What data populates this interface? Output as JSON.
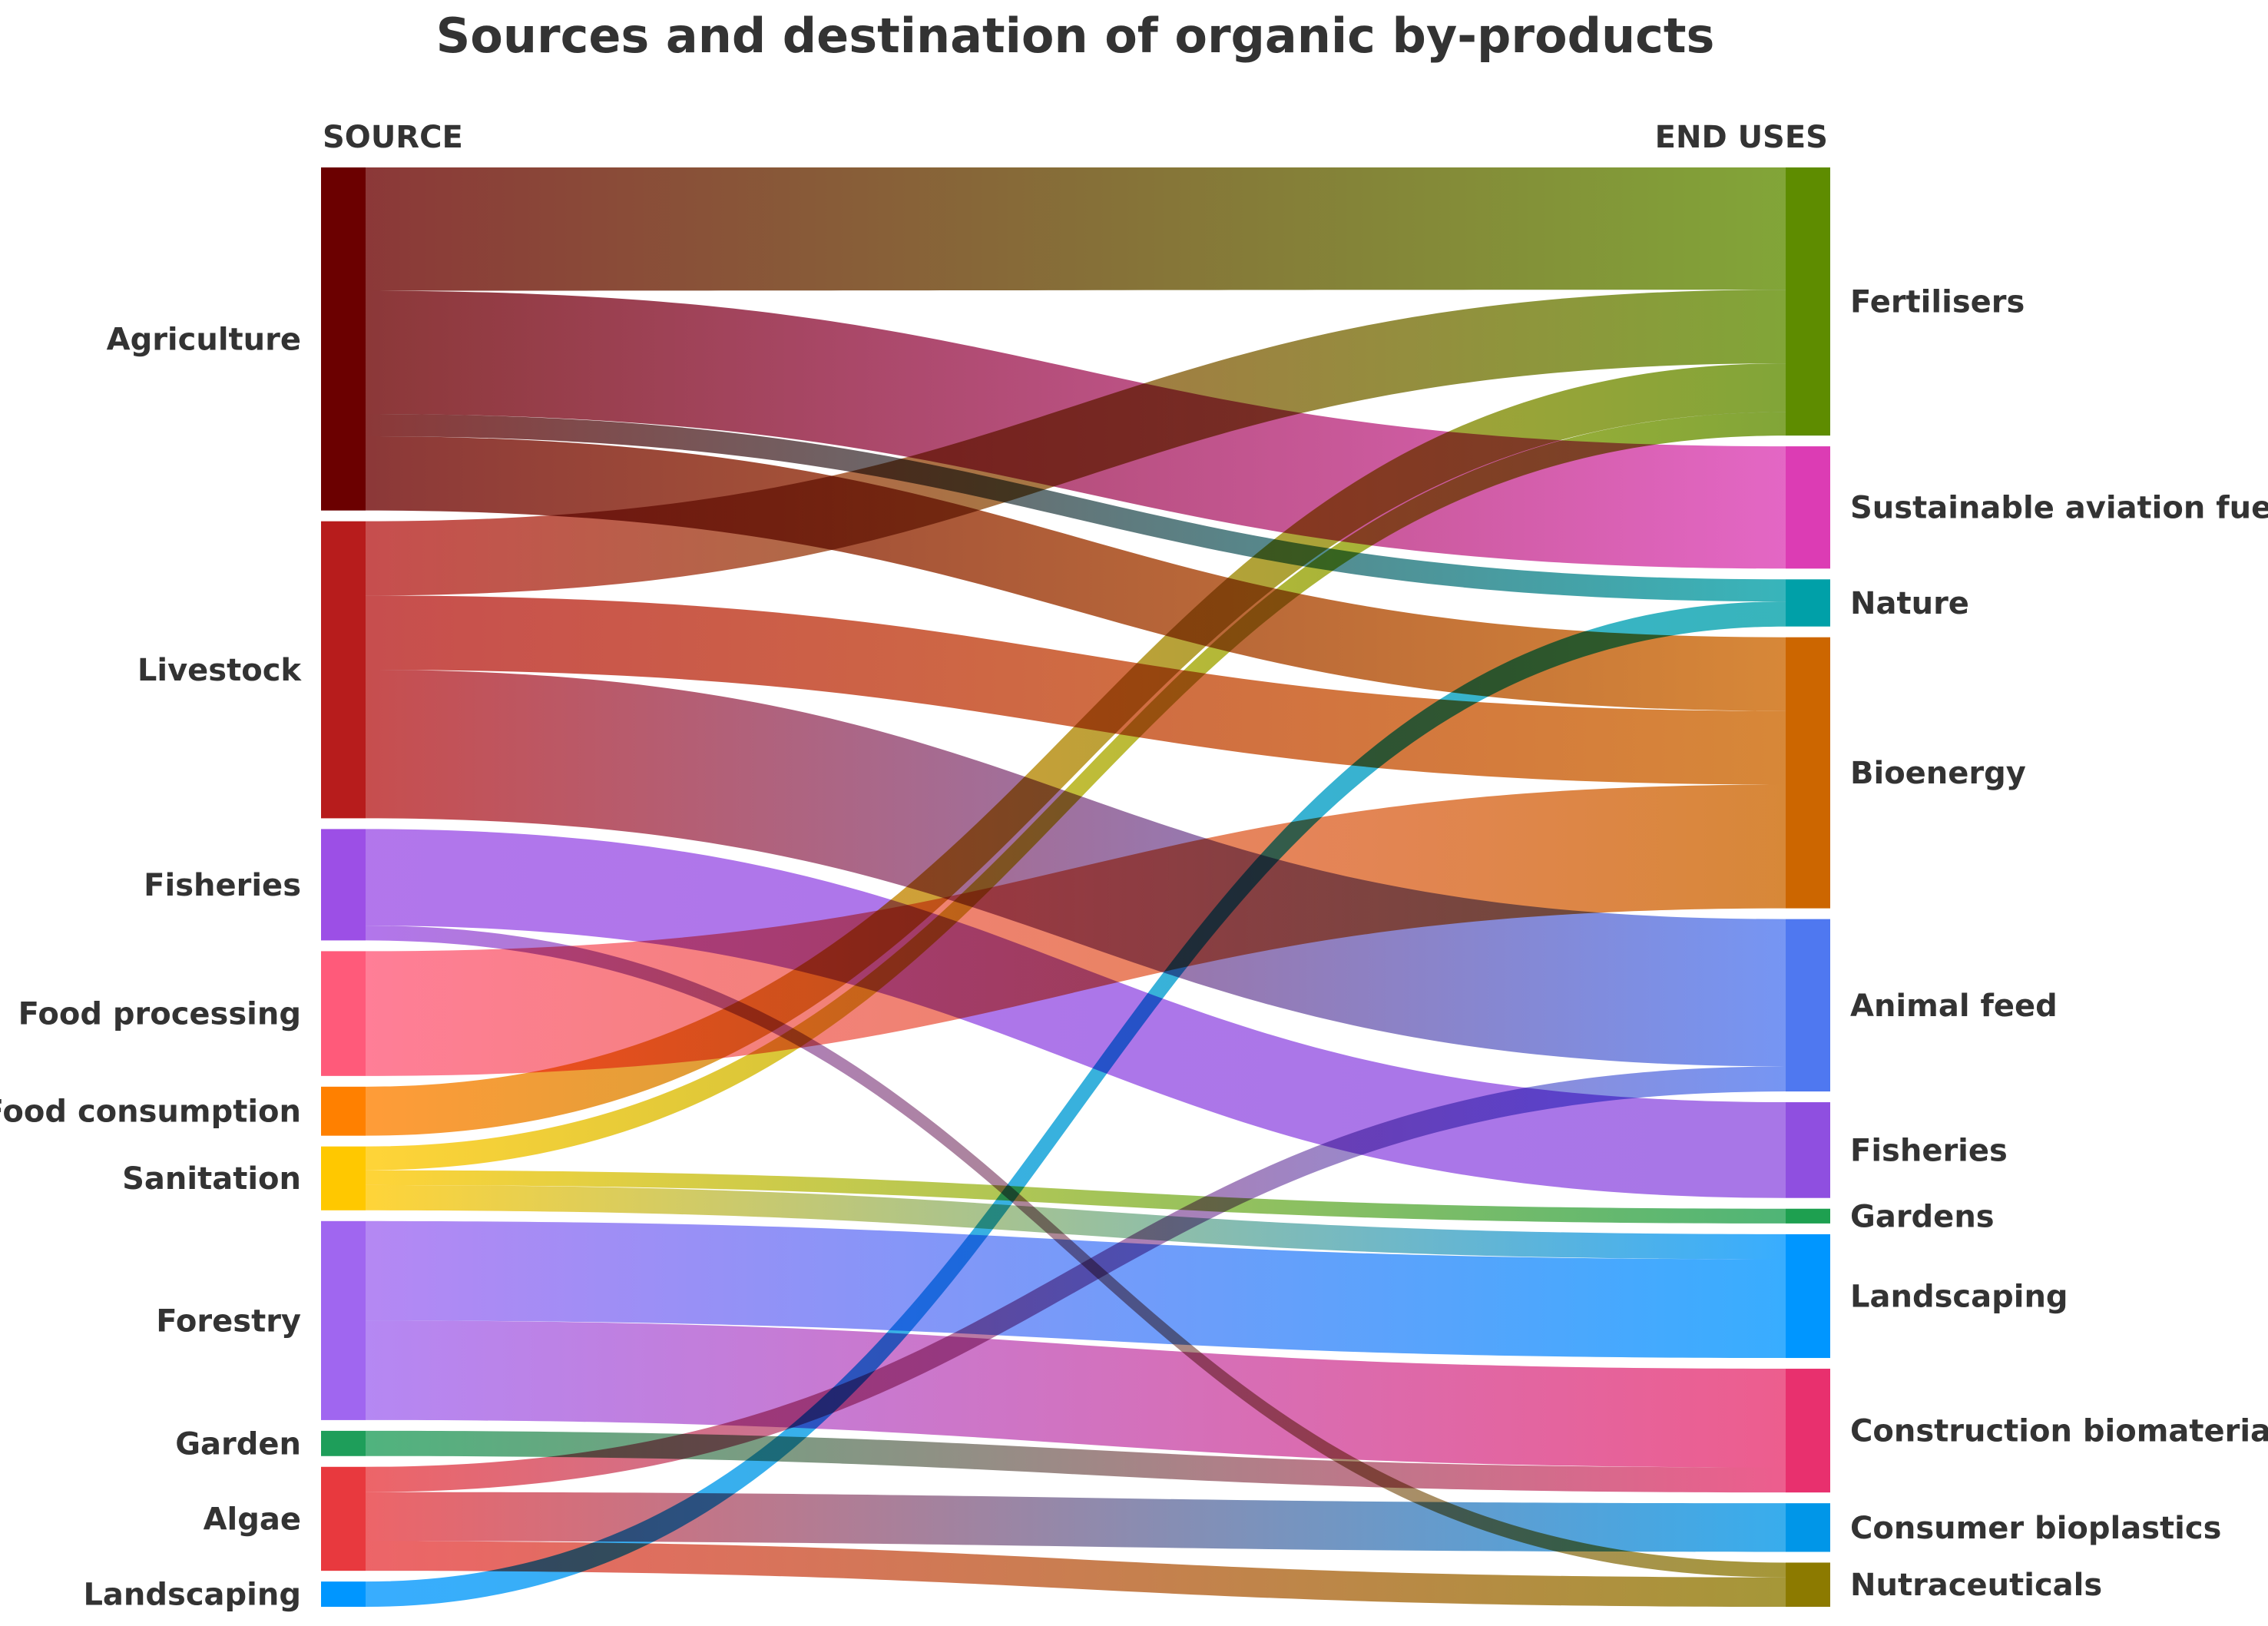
{
  "chart_data": {
    "type": "sankey",
    "title": "Sources and destination of organic by-products",
    "left_header": "SOURCE",
    "right_header": "END USES",
    "sources": [
      {
        "id": "agriculture",
        "name": "Agriculture",
        "color": "#6b0000"
      },
      {
        "id": "livestock",
        "name": "Livestock",
        "color": "#b71c1c"
      },
      {
        "id": "fisheries",
        "name": "Fisheries",
        "color": "#9c4fe6"
      },
      {
        "id": "food_processing",
        "name": "Food processing",
        "color": "#ff5a7a"
      },
      {
        "id": "food_consumption",
        "name": "Food consumption",
        "color": "#ff8000"
      },
      {
        "id": "sanitation",
        "name": "Sanitation",
        "color": "#ffc800"
      },
      {
        "id": "forestry",
        "name": "Forestry",
        "color": "#a066f0"
      },
      {
        "id": "garden",
        "name": "Garden",
        "color": "#1e9e5a"
      },
      {
        "id": "algae",
        "name": "Algae",
        "color": "#e8393e"
      },
      {
        "id": "landscaping_src",
        "name": "Landscaping",
        "color": "#0096ff"
      }
    ],
    "targets": [
      {
        "id": "fertilisers",
        "name": "Fertilisers",
        "color": "#5e8c00"
      },
      {
        "id": "saf",
        "name": "Sustainable aviation fuels",
        "color": "#dc3cb4"
      },
      {
        "id": "nature",
        "name": "Nature",
        "color": "#00a0a8"
      },
      {
        "id": "bioenergy",
        "name": "Bioenergy",
        "color": "#cc6600"
      },
      {
        "id": "animal_feed",
        "name": "Animal feed",
        "color": "#4f78f0"
      },
      {
        "id": "fisheries_t",
        "name": "Fisheries",
        "color": "#8f4fe0"
      },
      {
        "id": "gardens",
        "name": "Gardens",
        "color": "#1ea050"
      },
      {
        "id": "landscaping_t",
        "name": "Landscaping",
        "color": "#0096ff"
      },
      {
        "id": "construction",
        "name": "Construction biomaterials",
        "color": "#e8306e"
      },
      {
        "id": "bioplastics",
        "name": "Consumer bioplastics",
        "color": "#0096e8"
      },
      {
        "id": "nutraceuticals",
        "name": "Nutraceuticals",
        "color": "#8c7a00"
      }
    ],
    "links": [
      {
        "source": "agriculture",
        "target": "fertilisers",
        "value": 8.3
      },
      {
        "source": "agriculture",
        "target": "saf",
        "value": 8.3
      },
      {
        "source": "agriculture",
        "target": "nature",
        "value": 1.5
      },
      {
        "source": "agriculture",
        "target": "bioenergy",
        "value": 5.0
      },
      {
        "source": "livestock",
        "target": "fertilisers",
        "value": 5.0
      },
      {
        "source": "livestock",
        "target": "bioenergy",
        "value": 5.0
      },
      {
        "source": "livestock",
        "target": "animal_feed",
        "value": 10.0
      },
      {
        "source": "fisheries",
        "target": "fisheries_t",
        "value": 6.5
      },
      {
        "source": "fisheries",
        "target": "nutraceuticals",
        "value": 1.0
      },
      {
        "source": "food_processing",
        "target": "bioenergy",
        "value": 8.4
      },
      {
        "source": "food_consumption",
        "target": "fertilisers",
        "value": 3.3
      },
      {
        "source": "sanitation",
        "target": "fertilisers",
        "value": 1.6
      },
      {
        "source": "sanitation",
        "target": "gardens",
        "value": 1.0
      },
      {
        "source": "sanitation",
        "target": "landscaping_t",
        "value": 1.7
      },
      {
        "source": "forestry",
        "target": "landscaping_t",
        "value": 6.7
      },
      {
        "source": "forestry",
        "target": "construction",
        "value": 6.7
      },
      {
        "source": "garden",
        "target": "construction",
        "value": 1.7
      },
      {
        "source": "algae",
        "target": "animal_feed",
        "value": 1.7
      },
      {
        "source": "algae",
        "target": "bioplastics",
        "value": 3.3
      },
      {
        "source": "algae",
        "target": "nutraceuticals",
        "value": 2.0
      },
      {
        "source": "landscaping_src",
        "target": "nature",
        "value": 1.7
      }
    ]
  }
}
